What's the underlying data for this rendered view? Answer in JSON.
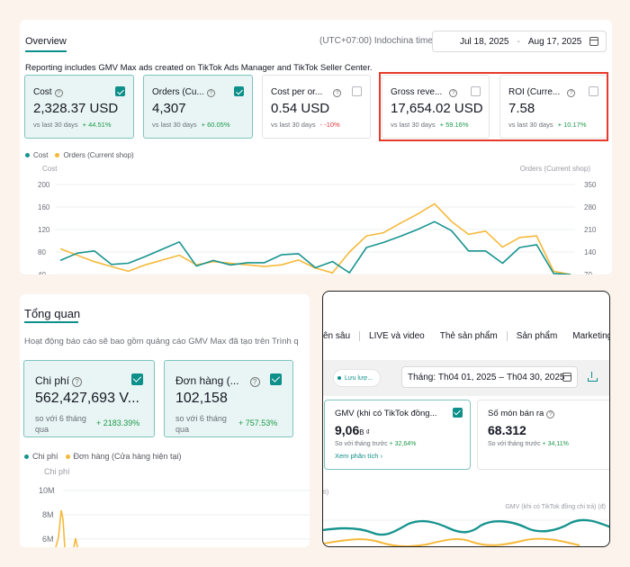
{
  "panel1": {
    "tab": "Overview",
    "timezone": "(UTC+07:00) Indochina time",
    "date_start": "Jul 18, 2025",
    "date_sep": "-",
    "date_end": "Aug 17, 2025",
    "note": "Reporting includes GMV Max ads created on TikTok Ads Manager and TikTok Seller Center.",
    "metrics": [
      {
        "label": "Cost",
        "value": "2,328.37 USD",
        "compare": "vs last 30 days",
        "change": "+ 44.51%",
        "direction": "up",
        "selected": true
      },
      {
        "label": "Orders (Cu...",
        "value": "4,307",
        "compare": "vs last 30 days",
        "change": "+ 60.05%",
        "direction": "up",
        "selected": true
      },
      {
        "label": "Cost per or...",
        "value": "0.54 USD",
        "compare": "vs last 30 days",
        "change": "- -10%",
        "direction": "down",
        "selected": false
      },
      {
        "label": "Gross reve...",
        "value": "17,654.02 USD",
        "compare": "vs last 30 days",
        "change": "+ 59.16%",
        "direction": "up",
        "selected": false
      },
      {
        "label": "ROI (Curre...",
        "value": "7.58",
        "compare": "vs last 30 days",
        "change": "+ 10.17%",
        "direction": "up",
        "selected": false
      }
    ],
    "legend": [
      "Cost",
      "Orders (Current shop)"
    ],
    "y_left_title": "Cost",
    "y_right_title": "Orders (Current shop)",
    "y_left_ticks": [
      "200",
      "160",
      "120",
      "80",
      "40"
    ],
    "y_right_ticks": [
      "350",
      "280",
      "210",
      "140",
      "70"
    ],
    "colors": {
      "cost": "#18948f",
      "orders": "#f5b93b"
    }
  },
  "panel2": {
    "tab": "Tổng quan",
    "note": "Hoạt động báo cáo sẽ bao gồm quảng cáo GMV Max đã tạo trên Trình q",
    "metrics": [
      {
        "label": "Chi phí",
        "value": "562,427,693 V...",
        "compare": "so với 6 tháng qua",
        "change": "+ 2183.39%"
      },
      {
        "label": "Đơn hàng (...",
        "value": "102,158",
        "compare": "so với 6 tháng qua",
        "change": "+ 757.53%"
      }
    ],
    "legend": [
      "Chi phí",
      "Đơn hàng (Cửa hàng hiện tại)"
    ],
    "y_title": "Chi phí",
    "y_ticks": [
      "10M",
      "8M",
      "6M"
    ]
  },
  "panel3": {
    "nav": [
      "ên sâu",
      "LIVE và video",
      "Thẻ sản phẩm",
      "Sản phẩm",
      "Marketing"
    ],
    "chip": "Lưu lượ...",
    "date_label": "Tháng:",
    "date_start": "Th04 01, 2025",
    "date_sep": "–",
    "date_end": "Th04 30, 2025",
    "metrics": [
      {
        "label": "GMV (khi có TikTok đồng...",
        "value": "9,06",
        "unit": "B ₫",
        "compare": "So với tháng trước",
        "change": "+ 32,64%",
        "link": "Xem phân tích ›",
        "selected": true
      },
      {
        "label": "Số món bán ra",
        "value": "68.312",
        "compare": "So với tháng trước",
        "change": "+ 34,11%",
        "selected": false
      }
    ],
    "chart_left_label": "tì)",
    "chart_right_label": "GMV (khi có TikTok đồng chi trả) (đ)"
  },
  "chart_data": [
    {
      "type": "line",
      "x": [
        1,
        2,
        3,
        4,
        5,
        6,
        7,
        8,
        9,
        10,
        11,
        12,
        13,
        14,
        15,
        16,
        17,
        18,
        19,
        20,
        21,
        22,
        23,
        24,
        25,
        26,
        27,
        28,
        29,
        30,
        31
      ],
      "series": [
        {
          "name": "Cost",
          "axis": "left",
          "values": [
            65,
            78,
            82,
            58,
            60,
            72,
            85,
            98,
            55,
            65,
            57,
            61,
            61,
            75,
            77,
            52,
            63,
            43,
            88,
            97,
            108,
            120,
            134,
            118,
            82,
            82,
            60,
            88,
            93,
            42,
            40
          ]
        },
        {
          "name": "Orders (Current shop)",
          "axis": "right",
          "values": [
            150,
            130,
            110,
            95,
            80,
            100,
            115,
            130,
            100,
            110,
            105,
            100,
            95,
            100,
            115,
            90,
            75,
            140,
            190,
            200,
            230,
            258,
            290,
            235,
            195,
            205,
            155,
            185,
            190,
            80,
            70
          ]
        }
      ],
      "ylim_left": [
        40,
        200
      ],
      "ylim_right": [
        70,
        350
      ]
    }
  ]
}
